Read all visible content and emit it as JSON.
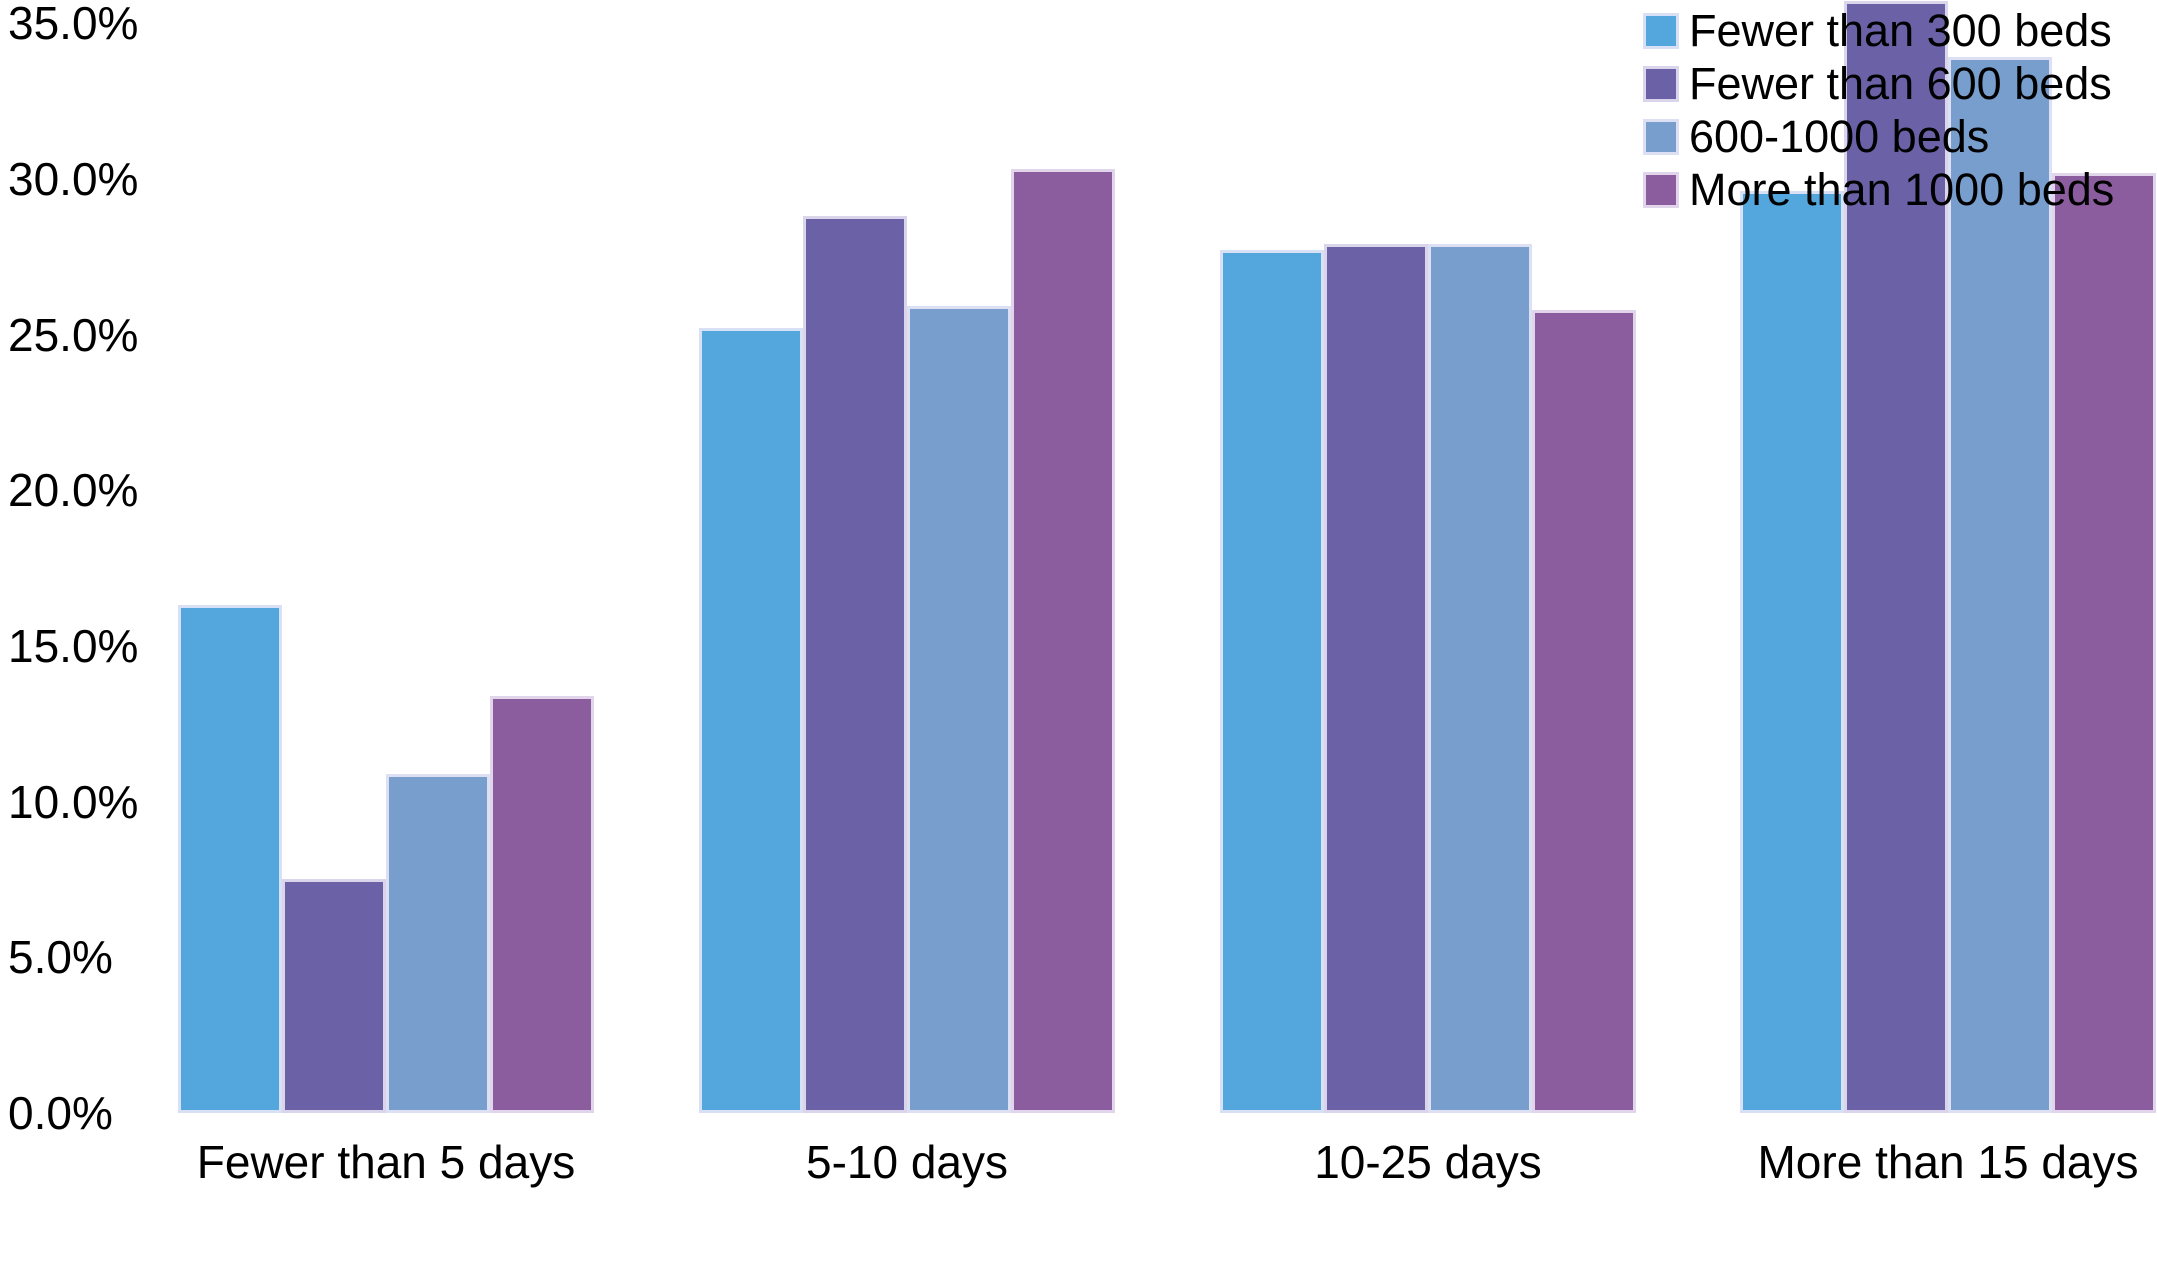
{
  "chart_data": {
    "type": "bar",
    "title": "",
    "xlabel": "",
    "ylabel": "",
    "categories": [
      "Fewer than 5 days",
      "5-10 days",
      "10-25 days",
      "More than 15 days"
    ],
    "series": [
      {
        "name": "Fewer than 300 beds",
        "color": "#53A7DD",
        "values": [
          16.3,
          25.2,
          27.7,
          29.6
        ]
      },
      {
        "name": "Fewer than 600 beds",
        "color": "#6B61A7",
        "values": [
          7.5,
          28.8,
          27.9,
          35.7
        ]
      },
      {
        "name": "600-1000 beds",
        "color": "#789ECD",
        "values": [
          10.9,
          25.9,
          27.9,
          33.9
        ]
      },
      {
        "name": "More than 1000 beds",
        "color": "#8B5C9E",
        "values": [
          13.4,
          30.3,
          25.8,
          30.2
        ]
      }
    ],
    "y_axis": {
      "min": 0,
      "max": 35,
      "step": 5,
      "tick_labels": [
        "0.0%",
        "5.0%",
        "10.0%",
        "15.0%",
        "20.0%",
        "25.0%",
        "30.0%",
        "35.0%"
      ]
    },
    "grid": false,
    "legend_position": "top-right",
    "background_color": "#FFFFFF",
    "text_color": "#000000"
  }
}
